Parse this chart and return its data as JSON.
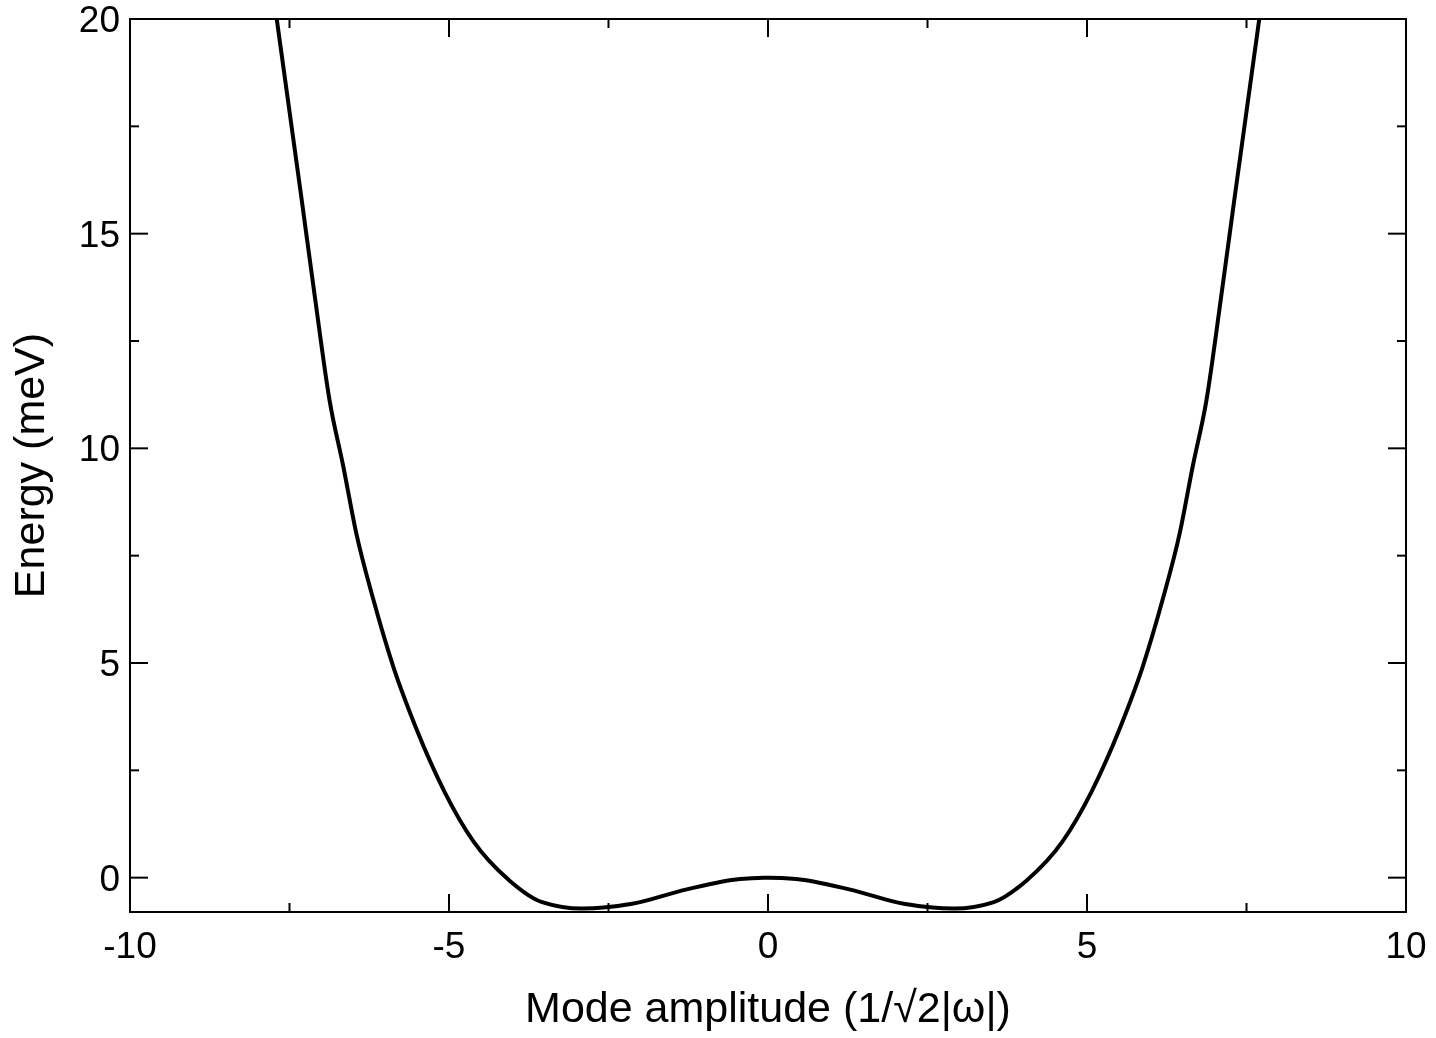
{
  "chart_data": {
    "type": "line",
    "xlabel": "Mode amplitude (1/√2|ω|)",
    "ylabel": "Energy (meV)",
    "series": [
      {
        "color": "#000000",
        "x": [
          -7.7,
          -7.31,
          -7.1,
          -6.87,
          -6.66,
          -6.45,
          -6.19,
          -5.87,
          -5.52,
          -5.07,
          -4.62,
          -4.05,
          -3.54,
          -2.92,
          -2.13,
          -1.29,
          -0.44,
          0,
          0.44,
          1.29,
          2.13,
          2.92,
          3.54,
          4.05,
          4.62,
          5.07,
          5.52,
          5.87,
          6.19,
          6.45,
          6.66,
          6.87,
          7.1,
          7.31,
          7.7
        ],
        "values": [
          20,
          15.8,
          13.5,
          11.1,
          9.6,
          8.0,
          6.5,
          4.9,
          3.5,
          2.0,
          0.85,
          -0.07,
          -0.57,
          -0.72,
          -0.61,
          -0.28,
          -0.03,
          0,
          -0.03,
          -0.28,
          -0.61,
          -0.72,
          -0.57,
          -0.07,
          0.85,
          2.0,
          3.5,
          4.9,
          6.5,
          8.0,
          9.6,
          11.1,
          13.5,
          15.8,
          20
        ]
      }
    ],
    "xlim": [
      -10,
      10
    ],
    "ylim": [
      -0.8,
      20
    ],
    "xticks": [
      -10,
      {
        "value": -7.5,
        "label": null
      },
      -5,
      {
        "value": -2.5,
        "label": null
      },
      0,
      {
        "value": 2.5,
        "label": null
      },
      5,
      {
        "value": 7.5,
        "label": null
      },
      10
    ],
    "yticks": [
      0,
      {
        "value": 2.5,
        "label": null
      },
      5,
      {
        "value": 7.5,
        "label": null
      },
      10,
      {
        "value": 12.5,
        "label": null
      },
      15,
      {
        "value": 17.5,
        "label": null
      },
      20
    ],
    "grid": false,
    "marker": "none",
    "line_style": "solid"
  }
}
